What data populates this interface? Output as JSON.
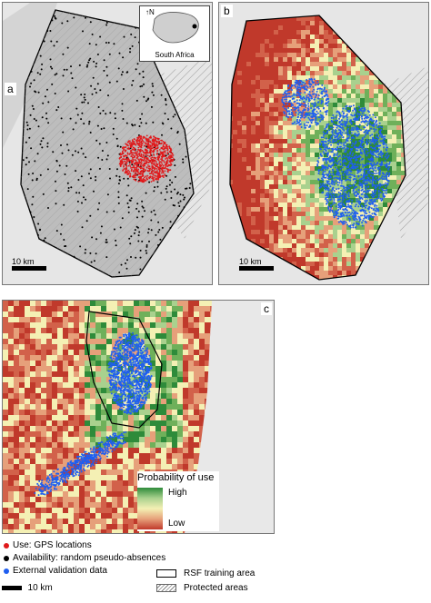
{
  "panels": {
    "a": {
      "letter": "a",
      "scale_label": "10 km"
    },
    "b": {
      "letter": "b",
      "scale_label": "10 km"
    },
    "c": {
      "letter": "c",
      "scale_label": "10 km"
    }
  },
  "inset": {
    "north": "N",
    "country": "South Africa"
  },
  "probability_legend": {
    "title": "Probability of use",
    "high": "High",
    "low": "Low"
  },
  "legend": {
    "use": "Use: GPS locations",
    "availability": "Availability: random pseudo-absences",
    "validation": "External validation data",
    "training_area": "RSF training area",
    "protected": "Protected areas"
  },
  "colors": {
    "use": "#e0191b",
    "availability": "#000000",
    "validation": "#1f5ef0",
    "high": "#2e8b3a",
    "low": "#c0392b"
  }
}
